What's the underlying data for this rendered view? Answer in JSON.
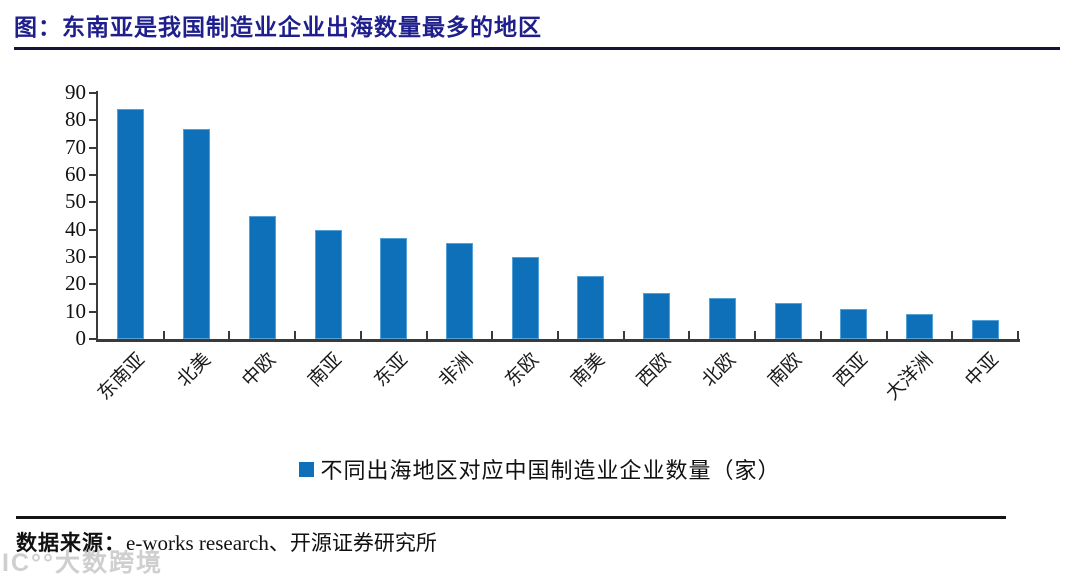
{
  "title": "图：东南亚是我国制造业企业出海数量最多的地区",
  "source_label": "数据来源：",
  "source_value": "e-works research、开源证券研究所",
  "watermark": "IC°°大数跨境",
  "colors": {
    "bar": "#0d70b9",
    "bar_border": "#54a1d8",
    "title": "#1e1e8c",
    "axis": "#3a3a3a"
  },
  "chart_data": {
    "type": "bar",
    "title": "东南亚是我国制造业企业出海数量最多的地区",
    "legend": "不同出海地区对应中国制造业企业数量（家）",
    "categories": [
      "东南亚",
      "北美",
      "中欧",
      "南亚",
      "东亚",
      "非洲",
      "东欧",
      "南美",
      "西欧",
      "北欧",
      "南欧",
      "西亚",
      "大洋洲",
      "中亚"
    ],
    "values": [
      84,
      77,
      45,
      40,
      37,
      35,
      30,
      23,
      17,
      15,
      13,
      11,
      9,
      7
    ],
    "xlabel": "",
    "ylabel": "",
    "ylim": [
      0,
      90
    ],
    "ytick_step": 10,
    "grid": false,
    "legend_position": "bottom"
  }
}
